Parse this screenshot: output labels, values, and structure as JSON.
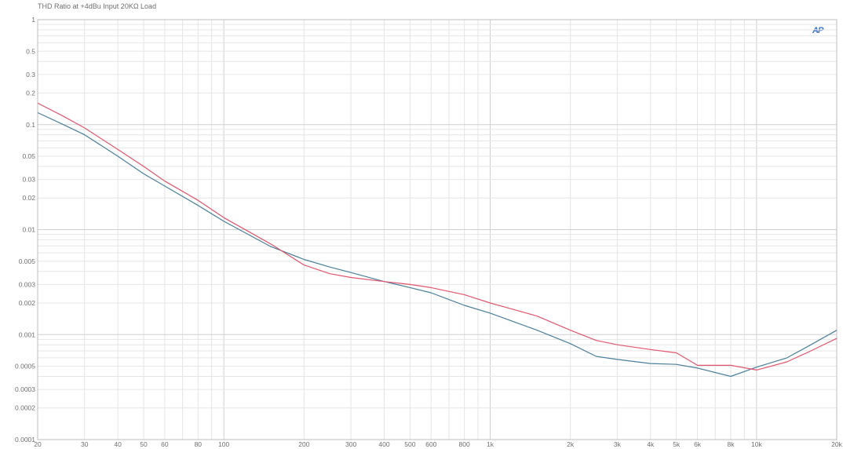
{
  "chart_data": {
    "type": "line",
    "title": "THD Ratio at +4dBu Input 20KΩ Load",
    "logo": "AP",
    "xlabel": "",
    "ylabel": "",
    "xscale": "log",
    "yscale": "log",
    "xlim": [
      20,
      20000
    ],
    "ylim": [
      0.0001,
      1
    ],
    "grid": true,
    "x_ticks": [
      {
        "v": 20,
        "label": "20"
      },
      {
        "v": 30,
        "label": "30"
      },
      {
        "v": 40,
        "label": "40"
      },
      {
        "v": 50,
        "label": "50"
      },
      {
        "v": 60,
        "label": "60"
      },
      {
        "v": 80,
        "label": "80"
      },
      {
        "v": 100,
        "label": "100"
      },
      {
        "v": 200,
        "label": "200"
      },
      {
        "v": 300,
        "label": "300"
      },
      {
        "v": 400,
        "label": "400"
      },
      {
        "v": 500,
        "label": "500"
      },
      {
        "v": 600,
        "label": "600"
      },
      {
        "v": 800,
        "label": "800"
      },
      {
        "v": 1000,
        "label": "1k"
      },
      {
        "v": 2000,
        "label": "2k"
      },
      {
        "v": 3000,
        "label": "3k"
      },
      {
        "v": 4000,
        "label": "4k"
      },
      {
        "v": 5000,
        "label": "5k"
      },
      {
        "v": 6000,
        "label": "6k"
      },
      {
        "v": 8000,
        "label": "8k"
      },
      {
        "v": 10000,
        "label": "10k"
      },
      {
        "v": 20000,
        "label": "20k"
      }
    ],
    "y_ticks": [
      {
        "v": 1,
        "label": "1"
      },
      {
        "v": 0.5,
        "label": "0.5"
      },
      {
        "v": 0.3,
        "label": "0.3"
      },
      {
        "v": 0.2,
        "label": "0.2"
      },
      {
        "v": 0.1,
        "label": "0.1"
      },
      {
        "v": 0.05,
        "label": "0.05"
      },
      {
        "v": 0.03,
        "label": "0.03"
      },
      {
        "v": 0.02,
        "label": "0.02"
      },
      {
        "v": 0.01,
        "label": "0.01"
      },
      {
        "v": 0.005,
        "label": "0.005"
      },
      {
        "v": 0.003,
        "label": "0.003"
      },
      {
        "v": 0.002,
        "label": "0.002"
      },
      {
        "v": 0.001,
        "label": "0.001"
      },
      {
        "v": 0.0005,
        "label": "0.0005"
      },
      {
        "v": 0.0003,
        "label": "0.0003"
      },
      {
        "v": 0.0002,
        "label": "0.0002"
      },
      {
        "v": 0.0001,
        "label": "0.0001"
      }
    ],
    "series": [
      {
        "color": "#4a7f9a",
        "x": [
          20,
          25,
          30,
          40,
          50,
          60,
          80,
          100,
          150,
          200,
          250,
          300,
          400,
          500,
          600,
          800,
          1000,
          1500,
          2000,
          2500,
          3000,
          4000,
          5000,
          6000,
          8000,
          10000,
          13000,
          16000,
          20000
        ],
        "y": [
          0.13,
          0.1,
          0.08,
          0.05,
          0.034,
          0.026,
          0.017,
          0.012,
          0.0069,
          0.0052,
          0.0044,
          0.0039,
          0.0032,
          0.0028,
          0.0025,
          0.0019,
          0.0016,
          0.0011,
          0.00082,
          0.00062,
          0.00058,
          0.00053,
          0.00052,
          0.00048,
          0.0004,
          0.00049,
          0.0006,
          0.0008,
          0.0011
        ]
      },
      {
        "color": "#e0566e",
        "x": [
          20,
          25,
          30,
          40,
          50,
          60,
          80,
          100,
          150,
          200,
          250,
          300,
          400,
          500,
          600,
          800,
          1000,
          1500,
          2000,
          2500,
          3000,
          4000,
          5000,
          6000,
          8000,
          10000,
          13000,
          16000,
          20000
        ],
        "y": [
          0.16,
          0.12,
          0.093,
          0.058,
          0.04,
          0.029,
          0.019,
          0.013,
          0.0073,
          0.0046,
          0.0038,
          0.0035,
          0.0032,
          0.003,
          0.0028,
          0.0024,
          0.002,
          0.0015,
          0.0011,
          0.00088,
          0.0008,
          0.00072,
          0.00067,
          0.00051,
          0.00051,
          0.00046,
          0.00055,
          0.0007,
          0.00092
        ]
      }
    ]
  }
}
